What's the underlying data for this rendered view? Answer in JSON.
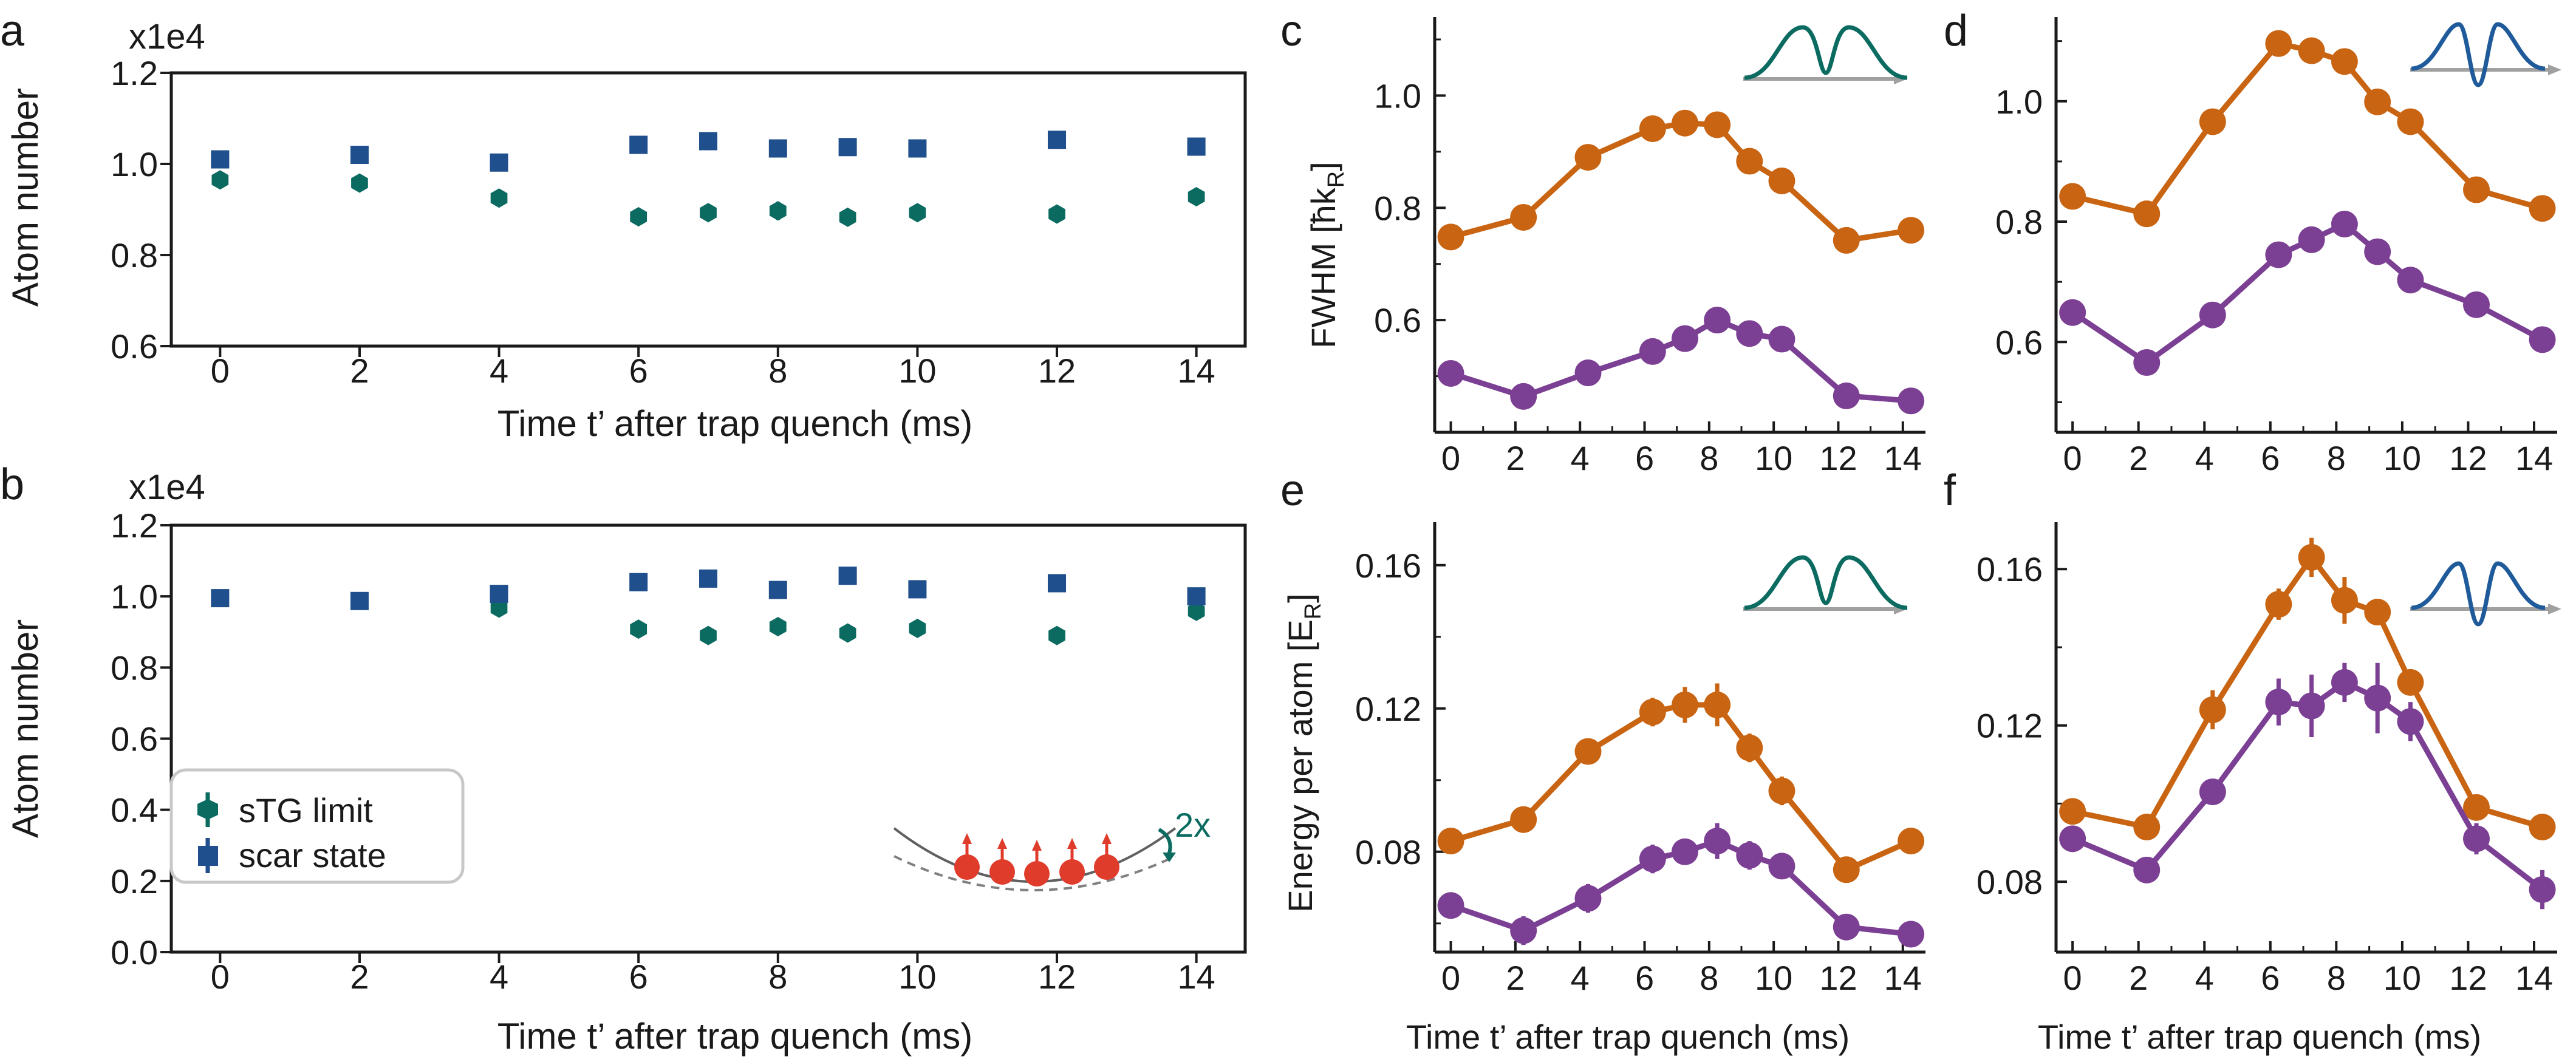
{
  "figure": {
    "description_free": true
  },
  "colors": {
    "stg": "#0b6b61",
    "scar": "#1f4f8c",
    "orange": "#c86412",
    "purple": "#7b3f93",
    "gaussian_teal": "#0b6b61",
    "gaussian_blue": "#1f5a9a",
    "baseline_gray": "#a0a0a0",
    "atom_red": "#e03c2c",
    "axis": "#1a1a1a"
  },
  "icons": {
    "trap_illustration": "trap-atoms-icon",
    "double_gaussian": "double-peak-icon",
    "dip_gaussian": "dip-peak-icon"
  },
  "legend": {
    "stg_label": "sTG limit",
    "scar_label": "scar state"
  },
  "inset": {
    "factor_label": "2x"
  },
  "chart_data": [
    {
      "id": "a",
      "panel_label": "a",
      "type": "scatter",
      "xlabel": "Time t’ after trap quench (ms)",
      "ylabel": "Atom number",
      "multiplier": "x1e4",
      "xlim": [
        -0.7,
        14.7
      ],
      "ylim": [
        0.6,
        1.2
      ],
      "xticks": [
        0,
        2,
        4,
        6,
        8,
        10,
        12,
        14
      ],
      "xticklabels": [
        "0",
        "2",
        "4",
        "6",
        "8",
        "10",
        "12",
        "14"
      ],
      "yticks": [
        0.6,
        0.8,
        1.0,
        1.2
      ],
      "yticklabels": [
        "0.6",
        "0.8",
        "1.0",
        "1.2"
      ],
      "series": [
        {
          "name": "sTG limit",
          "marker": "hexagon",
          "color_key": "stg",
          "x": [
            0,
            2,
            4,
            6,
            7,
            8,
            9,
            10,
            12,
            14
          ],
          "y": [
            0.965,
            0.958,
            0.925,
            0.884,
            0.893,
            0.897,
            0.883,
            0.893,
            0.89,
            0.928
          ],
          "err": [
            0.012,
            0.015,
            0.01,
            0.01,
            0.008,
            0.02,
            0.008,
            0.008,
            0.008,
            0.01
          ]
        },
        {
          "name": "scar state",
          "marker": "square",
          "color_key": "scar",
          "x": [
            0,
            2,
            4,
            6,
            7,
            8,
            9,
            10,
            12,
            14
          ],
          "y": [
            1.01,
            1.02,
            1.003,
            1.042,
            1.05,
            1.034,
            1.037,
            1.034,
            1.053,
            1.038
          ],
          "err": [
            0.008,
            0.008,
            0.008,
            0.008,
            0.008,
            0.008,
            0.008,
            0.008,
            0.008,
            0.008
          ]
        }
      ]
    },
    {
      "id": "b",
      "panel_label": "b",
      "type": "scatter",
      "xlabel": "Time t’ after trap quench (ms)",
      "ylabel": "Atom number",
      "multiplier": "x1e4",
      "xlim": [
        -0.7,
        14.7
      ],
      "ylim": [
        0.0,
        1.2
      ],
      "xticks": [
        0,
        2,
        4,
        6,
        8,
        10,
        12,
        14
      ],
      "xticklabels": [
        "0",
        "2",
        "4",
        "6",
        "8",
        "10",
        "12",
        "14"
      ],
      "yticks": [
        0.0,
        0.2,
        0.4,
        0.6,
        0.8,
        1.0,
        1.2
      ],
      "yticklabels": [
        "0.0",
        "0.2",
        "0.4",
        "0.6",
        "0.8",
        "1.0",
        "1.2"
      ],
      "series": [
        {
          "name": "sTG limit",
          "marker": "hexagon",
          "color_key": "stg",
          "x": [
            4,
            6,
            7,
            8,
            9,
            10,
            12,
            14
          ],
          "y": [
            0.967,
            0.908,
            0.89,
            0.915,
            0.897,
            0.91,
            0.89,
            0.958
          ],
          "err": [
            0.02,
            0.01,
            0.01,
            0.012,
            0.01,
            0.012,
            0.01,
            0.02
          ]
        },
        {
          "name": "scar state",
          "marker": "square",
          "color_key": "scar",
          "x": [
            0,
            2,
            4,
            6,
            7,
            8,
            9,
            10,
            12,
            14
          ],
          "y": [
            0.995,
            0.987,
            1.007,
            1.04,
            1.05,
            1.018,
            1.058,
            1.02,
            1.037,
            1.0
          ],
          "err": [
            0.01,
            0.01,
            0.01,
            0.01,
            0.01,
            0.01,
            0.01,
            0.01,
            0.01,
            0.01
          ]
        }
      ]
    },
    {
      "id": "c",
      "panel_label": "c",
      "type": "line",
      "xlabel": "",
      "ylabel": "FWHM [ħk",
      "ylabel_sub": "R",
      "ylabel_end": "]",
      "xlim": [
        -0.5,
        14.7
      ],
      "ylim": [
        0.4,
        1.14
      ],
      "xticks": [
        0,
        2,
        4,
        6,
        8,
        10,
        12,
        14
      ],
      "xticklabels": [
        "0",
        "2",
        "4",
        "6",
        "8",
        "10",
        "12",
        "14"
      ],
      "yticks": [
        0.6,
        0.8,
        1.0
      ],
      "yticklabels": [
        "0.6",
        "0.8",
        "1.0"
      ],
      "series": [
        {
          "name": "orange",
          "color_key": "orange",
          "x": [
            0,
            2.25,
            4.25,
            6.25,
            7.25,
            8.25,
            9.25,
            10.25,
            12.25,
            14.25
          ],
          "y": [
            0.748,
            0.783,
            0.89,
            0.941,
            0.951,
            0.948,
            0.883,
            0.848,
            0.742,
            0.76
          ],
          "err": [
            0,
            0,
            0,
            0,
            0,
            0,
            0,
            0,
            0,
            0
          ]
        },
        {
          "name": "purple",
          "color_key": "purple",
          "x": [
            0,
            2.25,
            4.25,
            6.25,
            7.25,
            8.25,
            9.25,
            10.25,
            12.25,
            14.25
          ],
          "y": [
            0.505,
            0.464,
            0.506,
            0.544,
            0.567,
            0.6,
            0.576,
            0.566,
            0.465,
            0.456
          ],
          "err": [
            0,
            0,
            0,
            0,
            0,
            0,
            0,
            0,
            0,
            0
          ]
        }
      ]
    },
    {
      "id": "d",
      "panel_label": "d",
      "type": "line",
      "xlabel": "",
      "ylabel": "",
      "xlim": [
        -0.5,
        14.7
      ],
      "ylim": [
        0.45,
        1.14
      ],
      "xticks": [
        0,
        2,
        4,
        6,
        8,
        10,
        12,
        14
      ],
      "xticklabels": [
        "0",
        "2",
        "4",
        "6",
        "8",
        "10",
        "12",
        "14"
      ],
      "yticks": [
        0.6,
        0.8,
        1.0
      ],
      "yticklabels": [
        "0.6",
        "0.8",
        "1.0"
      ],
      "series": [
        {
          "name": "orange",
          "color_key": "orange",
          "x": [
            0,
            2.25,
            4.25,
            6.25,
            7.25,
            8.25,
            9.25,
            10.25,
            12.25,
            14.25
          ],
          "y": [
            0.842,
            0.813,
            0.966,
            1.096,
            1.084,
            1.066,
            0.999,
            0.966,
            0.853,
            0.822
          ],
          "err": [
            0,
            0,
            0,
            0,
            0,
            0,
            0,
            0,
            0,
            0
          ]
        },
        {
          "name": "purple",
          "color_key": "purple",
          "x": [
            0,
            2.25,
            4.25,
            6.25,
            7.25,
            8.25,
            9.25,
            10.25,
            12.25,
            14.25
          ],
          "y": [
            0.649,
            0.566,
            0.645,
            0.745,
            0.77,
            0.796,
            0.75,
            0.703,
            0.662,
            0.604
          ],
          "err": [
            0,
            0,
            0,
            0,
            0,
            0,
            0,
            0,
            0,
            0
          ]
        }
      ]
    },
    {
      "id": "e",
      "panel_label": "e",
      "type": "line",
      "xlabel": "Time t’ after trap quench (ms)",
      "ylabel": "Energy per atom [E",
      "ylabel_sub": "R",
      "ylabel_end": "]",
      "xlim": [
        -0.5,
        14.7
      ],
      "ylim": [
        0.052,
        0.172
      ],
      "xticks": [
        0,
        2,
        4,
        6,
        8,
        10,
        12,
        14
      ],
      "xticklabels": [
        "0",
        "2",
        "4",
        "6",
        "8",
        "10",
        "12",
        "14"
      ],
      "yticks": [
        0.08,
        0.12,
        0.16
      ],
      "yticklabels": [
        "0.08",
        "0.12",
        "0.16"
      ],
      "series": [
        {
          "name": "orange",
          "color_key": "orange",
          "x": [
            0,
            2.25,
            4.25,
            6.25,
            7.25,
            8.25,
            9.25,
            10.25,
            12.25,
            14.25
          ],
          "y": [
            0.083,
            0.089,
            0.108,
            0.119,
            0.121,
            0.121,
            0.109,
            0.097,
            0.075,
            0.083
          ],
          "err": [
            0.003,
            0.003,
            0.003,
            0.004,
            0.005,
            0.006,
            0.004,
            0.004,
            0.002,
            0.002
          ]
        },
        {
          "name": "purple",
          "color_key": "purple",
          "x": [
            0,
            2.25,
            4.25,
            6.25,
            7.25,
            8.25,
            9.25,
            10.25,
            12.25,
            14.25
          ],
          "y": [
            0.065,
            0.058,
            0.067,
            0.078,
            0.08,
            0.083,
            0.079,
            0.076,
            0.059,
            0.057
          ],
          "err": [
            0.002,
            0.004,
            0.004,
            0.004,
            0.003,
            0.005,
            0.004,
            0.003,
            0.002,
            0.002
          ]
        }
      ]
    },
    {
      "id": "f",
      "panel_label": "f",
      "type": "line",
      "xlabel": "Time t’ after trap quench (ms)",
      "ylabel": "",
      "xlim": [
        -0.5,
        14.7
      ],
      "ylim": [
        0.062,
        0.172
      ],
      "xticks": [
        0,
        2,
        4,
        6,
        8,
        10,
        12,
        14
      ],
      "xticklabels": [
        "0",
        "2",
        "4",
        "6",
        "8",
        "10",
        "12",
        "14"
      ],
      "yticks": [
        0.08,
        0.12,
        0.16
      ],
      "yticklabels": [
        "0.08",
        "0.12",
        "0.16"
      ],
      "series": [
        {
          "name": "orange",
          "color_key": "orange",
          "x": [
            0,
            2.25,
            4.25,
            6.25,
            7.25,
            8.25,
            9.25,
            10.25,
            12.25,
            14.25
          ],
          "y": [
            0.098,
            0.094,
            0.124,
            0.151,
            0.163,
            0.152,
            0.149,
            0.131,
            0.099,
            0.094
          ],
          "err": [
            0.002,
            0.002,
            0.005,
            0.004,
            0.005,
            0.006,
            0.003,
            0.003,
            0.002,
            0.002
          ]
        },
        {
          "name": "purple",
          "color_key": "purple",
          "x": [
            0,
            2.25,
            4.25,
            6.25,
            7.25,
            8.25,
            9.25,
            10.25,
            12.25,
            14.25
          ],
          "y": [
            0.091,
            0.083,
            0.103,
            0.126,
            0.125,
            0.131,
            0.127,
            0.121,
            0.091,
            0.078
          ],
          "err": [
            0.002,
            0.002,
            0.002,
            0.006,
            0.008,
            0.005,
            0.009,
            0.005,
            0.004,
            0.005
          ]
        }
      ]
    }
  ]
}
